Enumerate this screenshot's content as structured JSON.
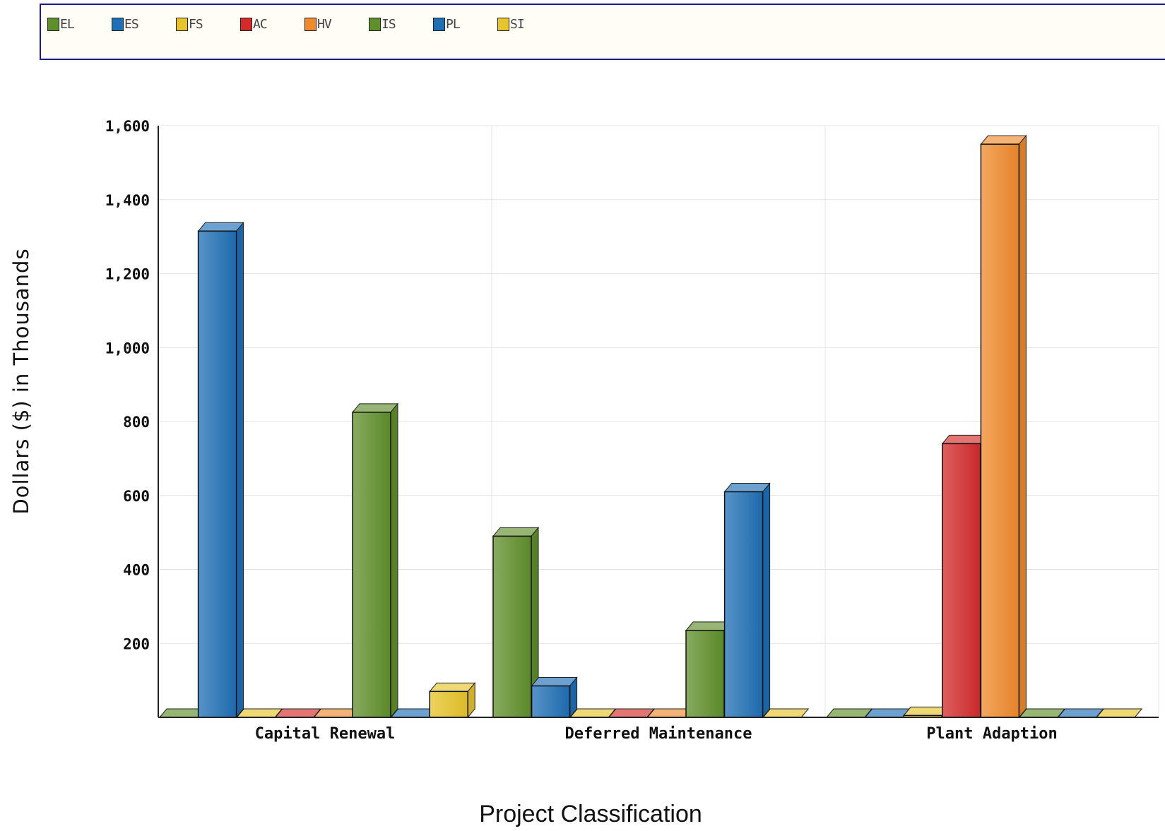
{
  "chart_data": {
    "type": "bar",
    "title": "",
    "xlabel": "Project Classification",
    "ylabel": "Dollars ($) in Thousands",
    "categories": [
      "Capital Renewal",
      "Deferred Maintenance",
      "Plant Adaption"
    ],
    "ylim": [
      0,
      1600
    ],
    "yticks": [
      200,
      400,
      600,
      800,
      1000,
      1200,
      1400,
      1600
    ],
    "ytick_labels": [
      "200",
      "400",
      "600",
      "800",
      "1,000",
      "1,200",
      "1,400",
      "1,600"
    ],
    "grid": true,
    "legend_position": "top",
    "series": [
      {
        "name": "EL",
        "color": "#5f8f2a",
        "values": [
          0,
          490,
          0
        ]
      },
      {
        "name": "ES",
        "color": "#1f6fb5",
        "values": [
          1315,
          85,
          0
        ]
      },
      {
        "name": "FS",
        "color": "#e6c42a",
        "values": [
          0,
          0,
          5
        ]
      },
      {
        "name": "AC",
        "color": "#d42a2a",
        "values": [
          0,
          0,
          740
        ]
      },
      {
        "name": "HV",
        "color": "#f08a2a",
        "values": [
          0,
          0,
          1550
        ]
      },
      {
        "name": "IS",
        "color": "#5f8f2a",
        "values": [
          825,
          235,
          0
        ]
      },
      {
        "name": "PL",
        "color": "#1f6fb5",
        "values": [
          0,
          610,
          0
        ]
      },
      {
        "name": "SI",
        "color": "#e6c42a",
        "values": [
          70,
          0,
          0
        ]
      }
    ]
  }
}
